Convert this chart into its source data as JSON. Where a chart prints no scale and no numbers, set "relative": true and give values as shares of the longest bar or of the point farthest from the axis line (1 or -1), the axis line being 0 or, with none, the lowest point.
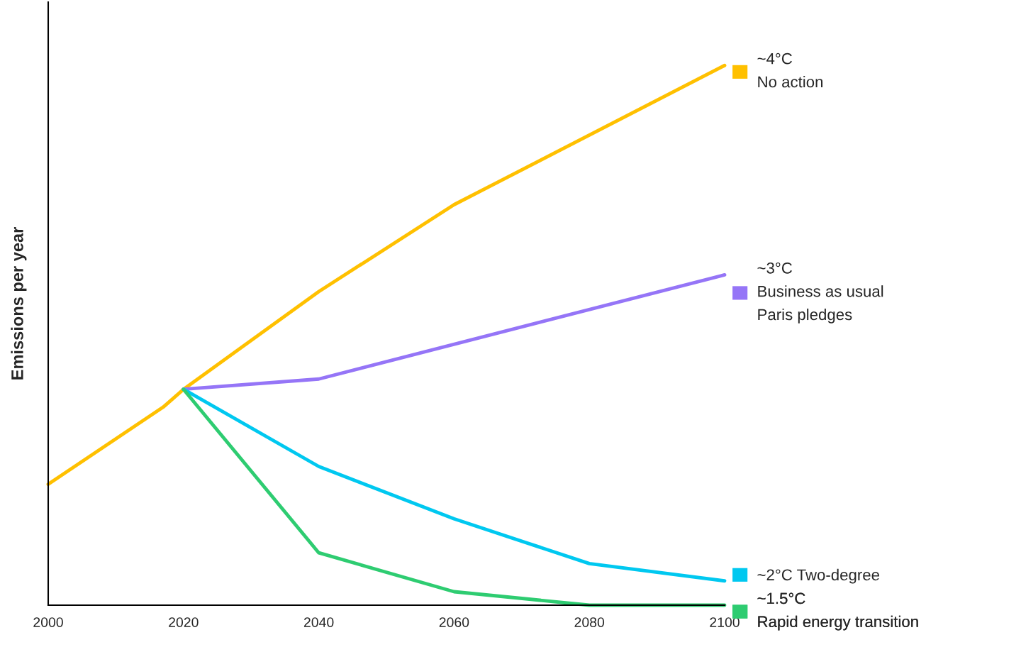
{
  "chart_data": {
    "type": "line",
    "relative": true,
    "ylabel": "Emissions per year",
    "xlim": [
      2000,
      2100
    ],
    "xticks": [
      2000,
      2020,
      2040,
      2060,
      2080,
      2100
    ],
    "grid": false,
    "legend": "right",
    "marker": "none",
    "line_style": "solid",
    "series": [
      {
        "name": "~4°C\nNo action",
        "color": "#ffc000",
        "x": [
          2000,
          2017,
          2020,
          2040,
          2060,
          2100
        ],
        "values": [
          0.224,
          0.367,
          0.4,
          0.581,
          0.742,
          1.0
        ]
      },
      {
        "name": "~3°C\nBusiness as usual\nParis pledges",
        "color": "#9575f7",
        "x": [
          2020,
          2040,
          2100
        ],
        "values": [
          0.4,
          0.419,
          0.612
        ]
      },
      {
        "name": "~2°C Two-degree",
        "color": "#00c8f0",
        "x": [
          2020,
          2040,
          2060,
          2080,
          2100
        ],
        "values": [
          0.4,
          0.257,
          0.16,
          0.077,
          0.045
        ]
      },
      {
        "name": "~1.5°C\nRapid energy transition",
        "color": "#2ecc71",
        "x": [
          2020,
          2040,
          2060,
          2080,
          2100
        ],
        "values": [
          0.4,
          0.097,
          0.025,
          0,
          0
        ]
      }
    ]
  }
}
